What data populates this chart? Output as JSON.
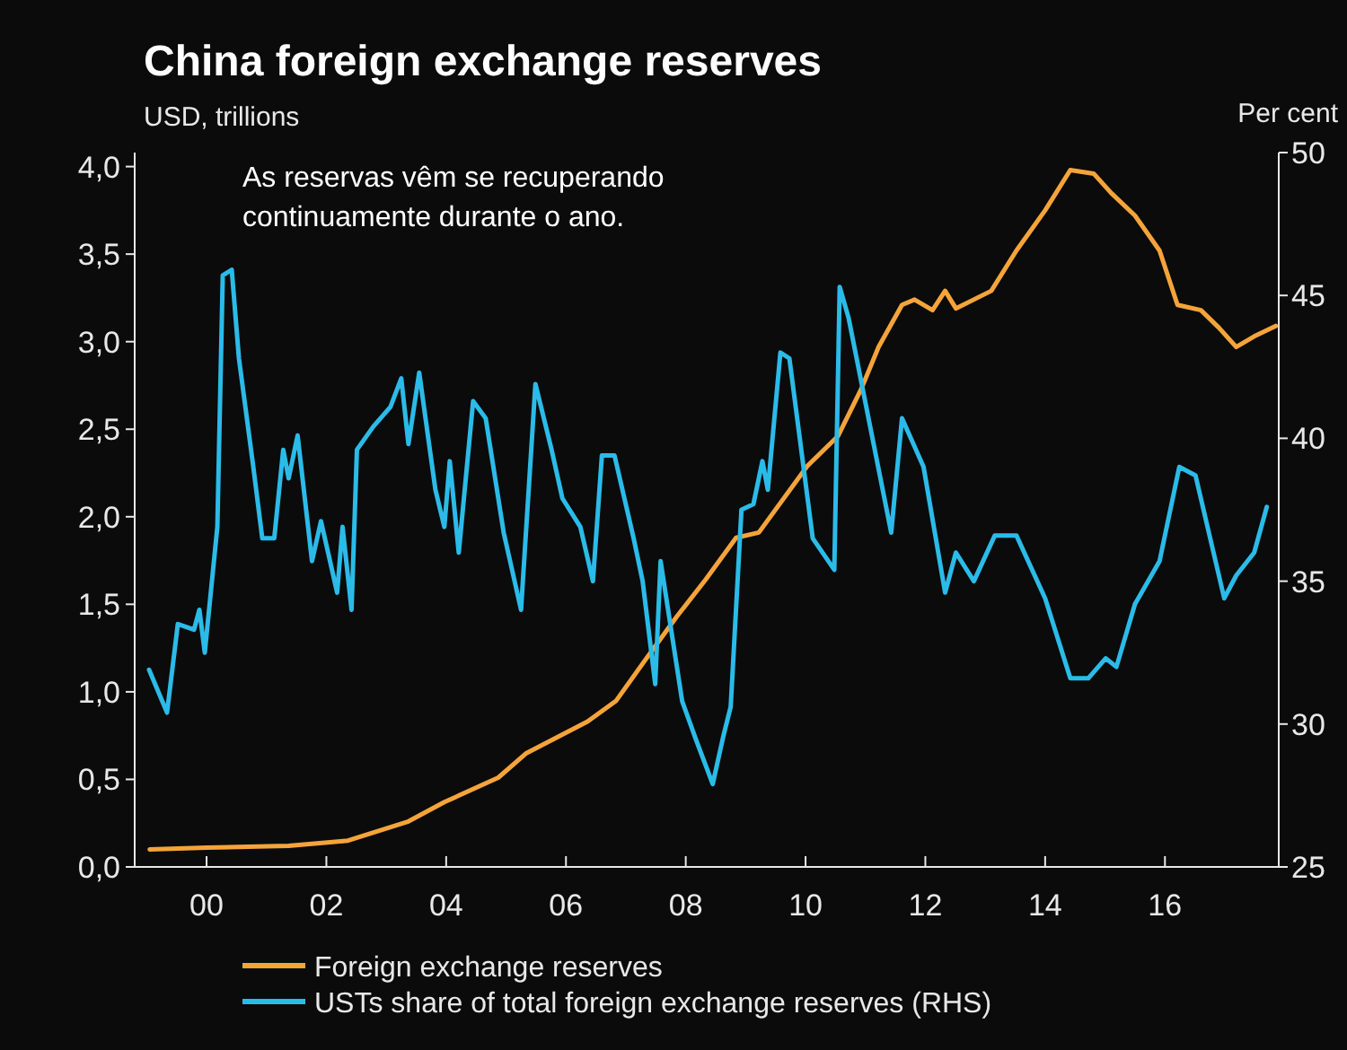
{
  "chart_data": {
    "type": "line",
    "title": "China foreign exchange reserves",
    "subtitle": "USD, trillions",
    "y2label": "Per cent",
    "annotations": [
      "As reservas vêm se recuperando\ncontinuamente durante o ano."
    ],
    "xlim": [
      1998.8,
      2017.9
    ],
    "xticks": [
      {
        "value": 2000,
        "label": "00"
      },
      {
        "value": 2002,
        "label": "02"
      },
      {
        "value": 2004,
        "label": "04"
      },
      {
        "value": 2006,
        "label": "06"
      },
      {
        "value": 2008,
        "label": "08"
      },
      {
        "value": 2010,
        "label": "10"
      },
      {
        "value": 2012,
        "label": "12"
      },
      {
        "value": 2014,
        "label": "14"
      },
      {
        "value": 2016,
        "label": "16"
      }
    ],
    "ylim": [
      0,
      4.08
    ],
    "yticks": [
      {
        "value": 0,
        "label": "0,0"
      },
      {
        "value": 0.5,
        "label": "0,5"
      },
      {
        "value": 1,
        "label": "1,0"
      },
      {
        "value": 1.5,
        "label": "1,5"
      },
      {
        "value": 2,
        "label": "2,0"
      },
      {
        "value": 2.5,
        "label": "2,5"
      },
      {
        "value": 3,
        "label": "3,0"
      },
      {
        "value": 3.5,
        "label": "3,5"
      },
      {
        "value": 4,
        "label": "4,0"
      }
    ],
    "y2lim": [
      25,
      50
    ],
    "y2ticks": [
      25,
      30,
      35,
      40,
      45,
      50
    ],
    "grid": false,
    "legend": "bottom",
    "line_style": "solid",
    "marker": "none",
    "series": [
      {
        "name": "Foreign exchange reserves",
        "color": "#f5a43a",
        "x": [
          1999.05,
          2000,
          2001.37,
          2002.36,
          2003.37,
          2003.97,
          2004.87,
          2005.34,
          2006.36,
          2006.84,
          2007.34,
          2007.85,
          2008.33,
          2008.84,
          2009.22,
          2010.03,
          2010.54,
          2010.93,
          2011.22,
          2011.61,
          2011.82,
          2012.12,
          2012.33,
          2012.51,
          2013.1,
          2013.52,
          2014,
          2014.42,
          2014.81,
          2015.1,
          2015.5,
          2015.91,
          2016.21,
          2016.6,
          2016.9,
          2017.19,
          2017.49,
          2017.85
        ],
        "values": [
          0.1,
          0.11,
          0.12,
          0.15,
          0.26,
          0.37,
          0.51,
          0.65,
          0.83,
          0.95,
          1.19,
          1.43,
          1.64,
          1.88,
          1.91,
          2.29,
          2.46,
          2.73,
          2.97,
          3.21,
          3.24,
          3.18,
          3.29,
          3.19,
          3.29,
          3.52,
          3.75,
          3.98,
          3.96,
          3.85,
          3.72,
          3.52,
          3.21,
          3.18,
          3.08,
          2.97,
          3.03,
          3.09
        ]
      },
      {
        "name": "USTs share of total foreign exchange reserves (RHS)",
        "color": "#2bbbe8",
        "axis": "y2",
        "x": [
          1999.04,
          1999.34,
          1999.52,
          1999.79,
          1999.88,
          1999.97,
          2000.18,
          2000.27,
          2000.42,
          2000.54,
          2000.78,
          2000.93,
          2001.13,
          2001.28,
          2001.37,
          2001.52,
          2001.76,
          2001.91,
          2002.18,
          2002.27,
          2002.42,
          2002.51,
          2002.78,
          2003.07,
          2003.25,
          2003.37,
          2003.55,
          2003.82,
          2003.97,
          2004.06,
          2004.21,
          2004.45,
          2004.66,
          2004.96,
          2005.25,
          2005.49,
          2005.76,
          2005.94,
          2006.24,
          2006.45,
          2006.6,
          2006.81,
          2007.13,
          2007.28,
          2007.49,
          2007.58,
          2007.94,
          2008.18,
          2008.45,
          2008.63,
          2008.75,
          2008.93,
          2009.13,
          2009.28,
          2009.37,
          2009.58,
          2009.73,
          2010.12,
          2010.48,
          2010.57,
          2010.72,
          2011.43,
          2011.61,
          2011.97,
          2012.33,
          2012.51,
          2012.81,
          2013.16,
          2013.52,
          2014,
          2014.42,
          2014.72,
          2015.01,
          2015.19,
          2015.5,
          2015.91,
          2016.24,
          2016.51,
          2016.99,
          2017.19,
          2017.49,
          2017.7
        ],
        "values": [
          31.9,
          30.4,
          33.5,
          33.3,
          34,
          32.5,
          36.9,
          45.7,
          45.9,
          42.8,
          39,
          36.5,
          36.5,
          39.6,
          38.6,
          40.1,
          35.7,
          37.1,
          34.6,
          36.9,
          34,
          39.6,
          40.4,
          41.1,
          42.1,
          39.8,
          42.3,
          38.2,
          36.9,
          39.2,
          36,
          41.3,
          40.7,
          36.7,
          34,
          41.9,
          39.6,
          37.9,
          36.9,
          35,
          39.4,
          39.4,
          36.5,
          35,
          31.4,
          35.7,
          30.8,
          29.4,
          27.9,
          29.6,
          30.6,
          37.5,
          37.7,
          39.2,
          38.2,
          43,
          42.8,
          36.5,
          35.4,
          45.3,
          44.2,
          36.7,
          40.7,
          39,
          34.6,
          36,
          35,
          36.6,
          36.6,
          34.4,
          31.6,
          31.6,
          32.3,
          32,
          34.2,
          35.7,
          39,
          38.7,
          34.4,
          35.2,
          36,
          37.6
        ]
      }
    ]
  }
}
